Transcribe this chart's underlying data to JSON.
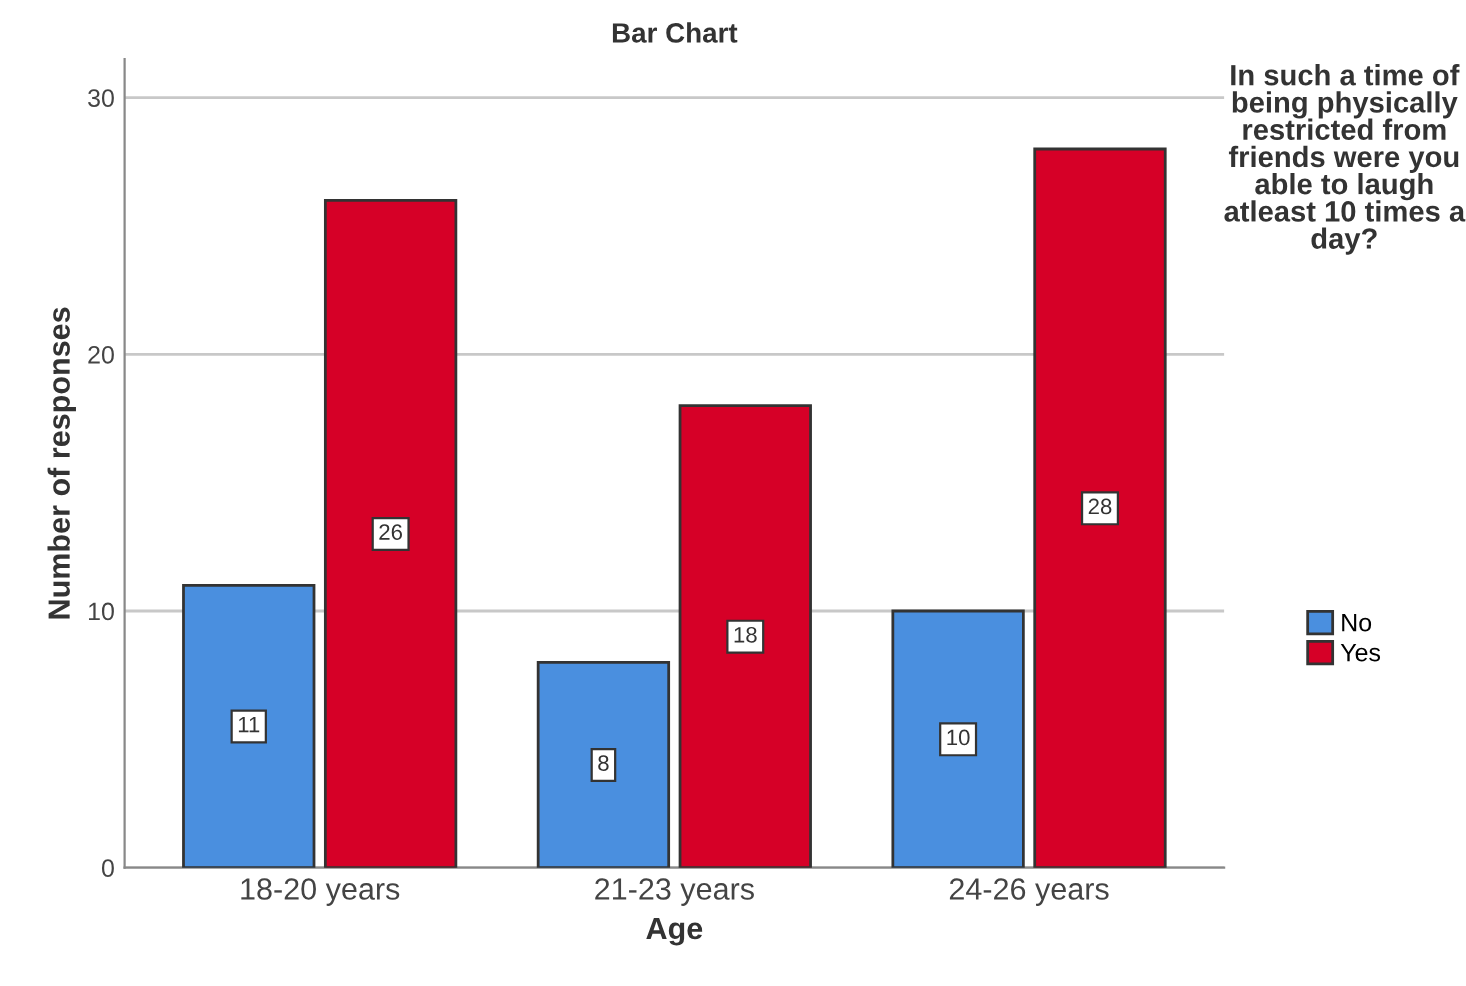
{
  "chart_data": {
    "type": "bar",
    "title": "Bar Chart",
    "xlabel": "Age",
    "ylabel": "Number of responses",
    "legend_title": "In such a time of being physically restricted from friends were you able to laugh atleast 10 times a day?",
    "categories": [
      "18-20 years",
      "21-23 years",
      "24-26 years"
    ],
    "series": [
      {
        "name": "No",
        "color": "#4a8fdf",
        "values": [
          11,
          8,
          10
        ]
      },
      {
        "name": "Yes",
        "color": "#d60027",
        "values": [
          26,
          18,
          28
        ]
      }
    ],
    "ylim": [
      0,
      31.5
    ],
    "yticks": [
      0,
      10,
      20,
      30
    ],
    "grid": "y",
    "legend": "right",
    "data_labels": true
  }
}
